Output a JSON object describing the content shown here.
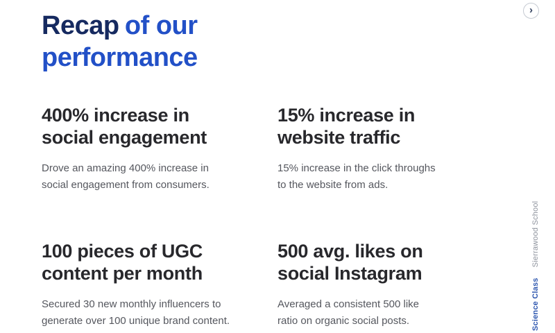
{
  "title": {
    "dark": "Recap",
    "blue": "of our performance"
  },
  "nav": {
    "next_glyph": "›",
    "next_icon": "chevron-right-icon"
  },
  "stats": [
    {
      "heading_line1": "400% increase in",
      "heading_line2": "social engagement",
      "desc_line1": "Drove an amazing 400% increase in",
      "desc_line2": "social engagement from consumers."
    },
    {
      "heading_line1": "15% increase in",
      "heading_line2": "website traffic",
      "desc_line1": "15% increase in the click throughs",
      "desc_line2": "to the website from ads."
    },
    {
      "heading_line1": "100 pieces of UGC",
      "heading_line2": "content per month",
      "desc_line1": "Secured 30 new monthly influencers to",
      "desc_line2": "generate over 100 unique brand content."
    },
    {
      "heading_line1": "500 avg. likes on",
      "heading_line2": "social Instagram",
      "desc_line1": "Averaged a consistent 500 like",
      "desc_line2": "ratio on organic social posts."
    }
  ],
  "sidebar": {
    "course": "Science Class",
    "school": "Sierrawood School"
  },
  "colors": {
    "background": "#ffffff",
    "title_dark": "#162a60",
    "title_blue": "#2250c7",
    "heading": "#28282c",
    "body_text": "#55575e",
    "side_course": "#2f58b0",
    "side_school": "#8f949e",
    "circle_border": "#c5cad2",
    "chevron": "#31405e"
  }
}
